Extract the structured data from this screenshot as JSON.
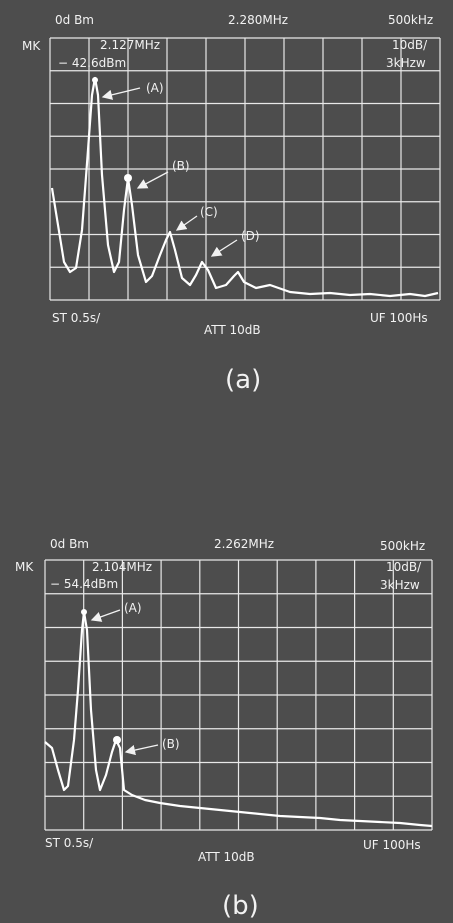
{
  "panels": [
    {
      "header": {
        "reference": "0d Bm",
        "center": "2.280MHz",
        "span": "500kHz"
      },
      "marker": {
        "label": "MK",
        "frequency": "2.127MHz",
        "level": "− 42.6dBm"
      },
      "scale": {
        "per_div": "10dB/",
        "rbw": "3kHzw"
      },
      "peaks": [
        "(A)",
        "(B)",
        "(C)",
        "(D)"
      ],
      "footer": {
        "sweep": "ST  0.5s/",
        "attenuation": "ATT  10dB",
        "filter": "UF  100Hs"
      },
      "caption": "(a)"
    },
    {
      "header": {
        "reference": "0d Bm",
        "center": "2.262MHz",
        "span": "500kHz"
      },
      "marker": {
        "label": "MK",
        "frequency": "2.104MHz",
        "level": "− 54.4dBm"
      },
      "scale": {
        "per_div": "10dB/",
        "rbw": "3kHzw"
      },
      "peaks": [
        "(A)",
        "(B)"
      ],
      "footer": {
        "sweep": "ST  0.5s/",
        "attenuation": "ATT  10dB",
        "filter": "UF  100Hs"
      },
      "caption": "(b)"
    }
  ]
}
